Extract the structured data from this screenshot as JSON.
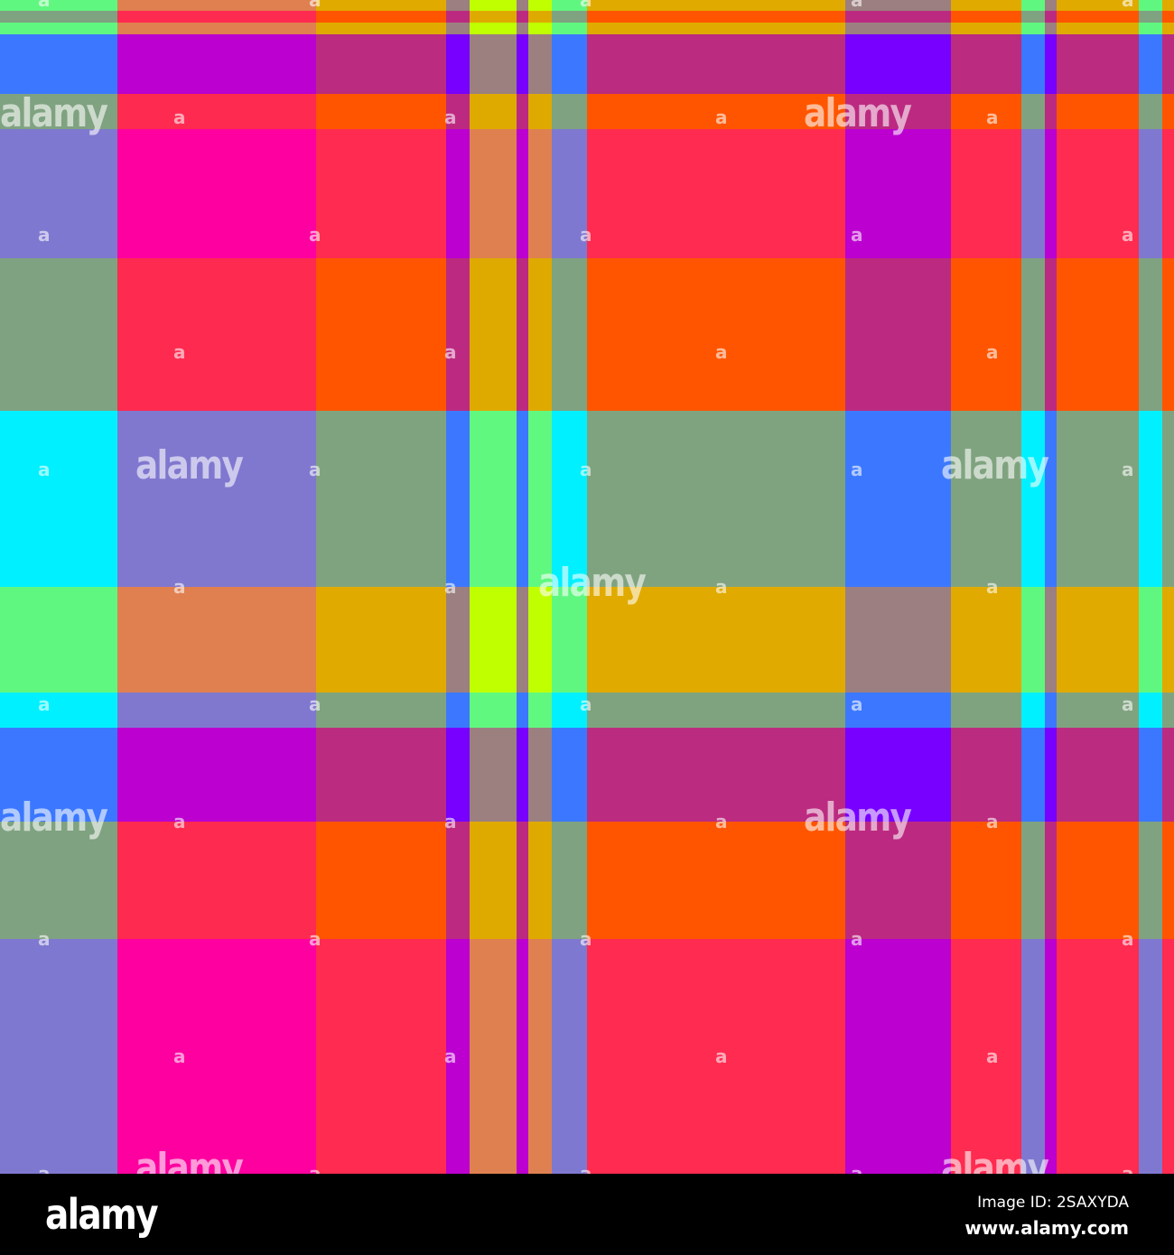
{
  "palette": {
    "pink": "#FF00A0",
    "orange": "#FF5500",
    "cyan": "#00F0FF",
    "lime": "#C0FF00",
    "violet": "#7700FF"
  },
  "watermark": {
    "big_text": "alamy",
    "small_text": "a"
  },
  "footer": {
    "logo": "alamy",
    "image_id": "Image ID: 2SAXYDA",
    "url": "www.alamy.com"
  }
}
